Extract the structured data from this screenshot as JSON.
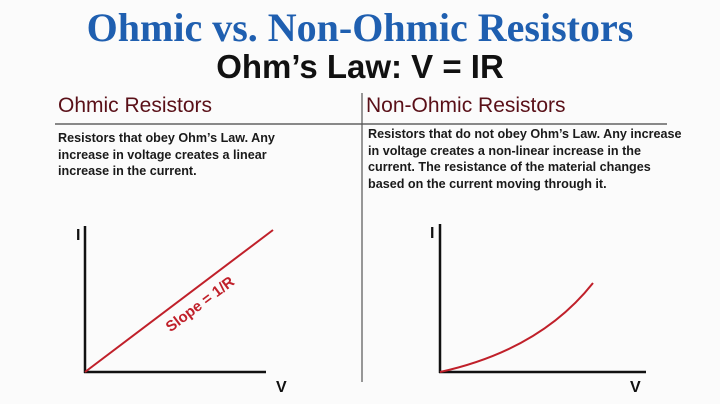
{
  "title": "Ohmic vs. Non-Ohmic Resistors",
  "subtitle": "Ohm’s Law:  V = IR",
  "colors": {
    "title": "#1f5fb0",
    "heading": "#5a1018",
    "curve": "#c0202a"
  },
  "left": {
    "heading": "Ohmic Resistors",
    "description": "Resistors that obey Ohm’s Law. Any increase in voltage creates a linear increase in the current.",
    "graph": {
      "y_label": "I",
      "x_label": "V",
      "line_label": "Slope = 1/R",
      "shape": "linear"
    }
  },
  "right": {
    "heading": "Non-Ohmic Resistors",
    "description": "Resistors that do not obey Ohm’s Law. Any increase in voltage creates a non-linear increase in the current. The resistance of the material changes based on the current moving through it.",
    "graph": {
      "y_label": "I",
      "x_label": "V",
      "shape": "non-linear (concave up)"
    }
  }
}
